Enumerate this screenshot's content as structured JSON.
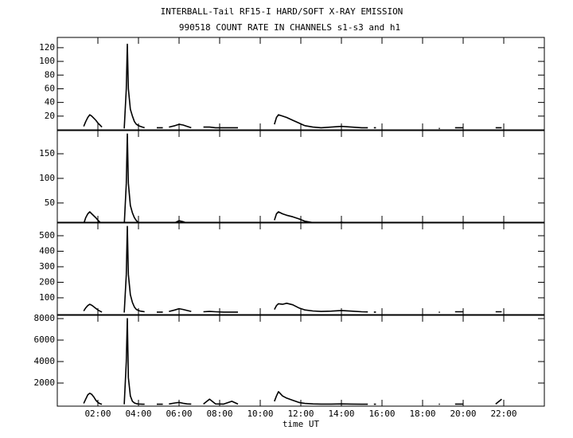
{
  "chart_data": [
    {
      "type": "line",
      "title": "INTERBALL-Tail RF15-I HARD/SOFT X-RAY EMISSION",
      "subtitle": "990518  COUNT RATE IN CHANNELS s1-s3 and h1",
      "x": [
        1.3,
        1.4,
        1.5,
        1.6,
        1.7,
        1.8,
        1.9,
        2.0,
        2.1,
        2.2,
        2.7,
        3.3,
        3.4,
        3.45,
        3.5,
        3.6,
        3.7,
        3.8,
        3.9,
        4.0,
        4.1,
        4.2,
        4.3,
        4.6,
        4.9,
        5.2,
        5.35,
        5.5,
        5.8,
        6.0,
        6.2,
        6.4,
        6.6,
        6.9,
        7.2,
        7.5,
        7.8,
        8.2,
        8.6,
        8.9,
        9.8,
        10.7,
        10.8,
        10.9,
        11.1,
        11.3,
        11.6,
        11.9,
        12.2,
        12.6,
        13.0,
        13.5,
        14.0,
        14.5,
        15.0,
        15.3,
        15.45,
        15.6,
        15.7,
        17,
        18.8,
        18.85,
        19.2,
        19.6,
        20.0,
        21,
        21.6,
        21.9
      ],
      "values": [
        5,
        12,
        18,
        22,
        20,
        17,
        14,
        10,
        7,
        4,
        null,
        2,
        60,
        125,
        60,
        30,
        20,
        12,
        8,
        6,
        5,
        4,
        3,
        null,
        3,
        3,
        null,
        4,
        6,
        8,
        7,
        5,
        3,
        null,
        4,
        4,
        3,
        3,
        3,
        3,
        null,
        8,
        18,
        22,
        20,
        18,
        14,
        10,
        6,
        4,
        3,
        4,
        5,
        4,
        3,
        3,
        null,
        3,
        3,
        null,
        2,
        2,
        null,
        3,
        3,
        null,
        3,
        3
      ],
      "color": "#000000",
      "xlim": [
        0,
        24
      ],
      "xticks": [
        2,
        4,
        6,
        8,
        10,
        12,
        14,
        16,
        18,
        20,
        22
      ],
      "ylim": [
        0,
        135
      ],
      "yticks": [
        20,
        40,
        60,
        80,
        100,
        120
      ]
    },
    {
      "type": "line",
      "x": [
        1.3,
        1.4,
        1.5,
        1.6,
        1.7,
        1.8,
        1.9,
        2.0,
        2.1,
        2.2,
        2.7,
        3.3,
        3.4,
        3.45,
        3.5,
        3.6,
        3.7,
        3.8,
        3.9,
        4.0,
        4.1,
        4.2,
        4.3,
        4.6,
        4.9,
        5.2,
        5.35,
        5.5,
        5.8,
        6.0,
        6.2,
        6.4,
        6.6,
        6.9,
        7.2,
        7.5,
        7.8,
        8.2,
        8.6,
        8.9,
        9.8,
        10.7,
        10.8,
        10.9,
        11.1,
        11.3,
        11.6,
        11.9,
        12.2,
        12.6,
        13.0,
        13.5,
        14.0,
        14.5,
        15.0,
        15.3,
        15.45,
        15.6,
        15.7,
        17,
        18.8,
        18.85,
        19.2,
        19.6,
        20.0,
        21,
        21.6,
        21.9
      ],
      "values": [
        8,
        20,
        28,
        32,
        28,
        24,
        20,
        15,
        11,
        8,
        null,
        5,
        90,
        190,
        90,
        45,
        30,
        20,
        14,
        10,
        8,
        7,
        6,
        null,
        6,
        6,
        null,
        7,
        10,
        14,
        12,
        9,
        7,
        null,
        8,
        8,
        7,
        7,
        7,
        6,
        null,
        15,
        28,
        32,
        28,
        25,
        22,
        18,
        13,
        10,
        8,
        9,
        11,
        9,
        7,
        7,
        null,
        6,
        6,
        null,
        5,
        5,
        null,
        7,
        7,
        null,
        7,
        7
      ],
      "color": "#000000",
      "xlim": [
        0,
        24
      ],
      "xticks": [
        2,
        4,
        6,
        8,
        10,
        12,
        14,
        16,
        18,
        20,
        22
      ],
      "ylim": [
        11,
        197
      ],
      "yticks": [
        50,
        100,
        150
      ]
    },
    {
      "type": "line",
      "x": [
        1.3,
        1.4,
        1.5,
        1.6,
        1.7,
        1.8,
        1.9,
        2.0,
        2.1,
        2.2,
        2.7,
        3.3,
        3.4,
        3.45,
        3.5,
        3.6,
        3.7,
        3.8,
        3.9,
        4.0,
        4.1,
        4.2,
        4.3,
        4.6,
        4.9,
        5.2,
        5.35,
        5.5,
        5.8,
        6.0,
        6.2,
        6.4,
        6.6,
        6.9,
        7.2,
        7.5,
        7.8,
        8.2,
        8.6,
        8.9,
        9.8,
        10.7,
        10.8,
        10.9,
        11.1,
        11.3,
        11.6,
        11.9,
        12.2,
        12.6,
        13.0,
        13.5,
        14.0,
        14.5,
        15.0,
        15.3,
        15.45,
        15.6,
        15.7,
        17,
        18.8,
        18.85,
        19.2,
        19.6,
        20.0,
        21,
        21.6,
        21.9
      ],
      "values": [
        15,
        35,
        50,
        58,
        52,
        42,
        32,
        22,
        14,
        8,
        null,
        5,
        250,
        560,
        250,
        120,
        70,
        40,
        25,
        18,
        14,
        12,
        10,
        null,
        8,
        8,
        null,
        12,
        22,
        30,
        25,
        18,
        12,
        null,
        10,
        12,
        10,
        8,
        8,
        8,
        null,
        25,
        50,
        62,
        58,
        65,
        55,
        35,
        22,
        15,
        12,
        14,
        18,
        14,
        10,
        9,
        null,
        8,
        8,
        null,
        7,
        7,
        null,
        10,
        10,
        null,
        10,
        10
      ],
      "color": "#000000",
      "xlim": [
        0,
        24
      ],
      "xticks": [
        2,
        4,
        6,
        8,
        10,
        12,
        14,
        16,
        18,
        20,
        22
      ],
      "ylim": [
        -8,
        582
      ],
      "yticks": [
        100,
        200,
        300,
        400,
        500
      ]
    },
    {
      "type": "line",
      "xlabel": "time UT",
      "x": [
        1.3,
        1.4,
        1.5,
        1.6,
        1.7,
        1.8,
        1.9,
        2.0,
        2.1,
        2.2,
        2.7,
        3.3,
        3.4,
        3.45,
        3.5,
        3.6,
        3.7,
        3.8,
        3.9,
        4.0,
        4.1,
        4.2,
        4.3,
        4.6,
        4.9,
        5.2,
        5.35,
        5.5,
        5.8,
        6.0,
        6.2,
        6.4,
        6.6,
        6.9,
        7.2,
        7.5,
        7.8,
        8.2,
        8.6,
        8.9,
        9.8,
        10.7,
        10.8,
        10.9,
        11.1,
        11.3,
        11.6,
        11.9,
        12.2,
        12.6,
        13.0,
        13.5,
        14.0,
        14.5,
        15.0,
        15.3,
        15.45,
        15.6,
        15.7,
        17,
        18.8,
        18.85,
        19.2,
        19.6,
        20.0,
        21,
        21.6,
        21.9
      ],
      "values": [
        100,
        500,
        900,
        1050,
        950,
        700,
        400,
        200,
        80,
        30,
        null,
        20,
        4000,
        8000,
        2500,
        800,
        300,
        150,
        80,
        50,
        40,
        30,
        30,
        null,
        30,
        30,
        null,
        50,
        150,
        200,
        120,
        60,
        40,
        null,
        40,
        500,
        60,
        40,
        300,
        40,
        null,
        300,
        800,
        1200,
        800,
        600,
        400,
        200,
        100,
        60,
        40,
        40,
        60,
        40,
        30,
        30,
        null,
        30,
        30,
        null,
        30,
        30,
        null,
        40,
        40,
        null,
        40,
        500
      ],
      "color": "#000000",
      "xlim": [
        0,
        24
      ],
      "xticks": [
        {
          "value": 2,
          "label": "02:00"
        },
        {
          "value": 4,
          "label": "04:00"
        },
        {
          "value": 6,
          "label": "06:00"
        },
        {
          "value": 8,
          "label": "08:00"
        },
        {
          "value": 10,
          "label": "10:00"
        },
        {
          "value": 12,
          "label": "12:00"
        },
        {
          "value": 14,
          "label": "14:00"
        },
        {
          "value": 16,
          "label": "16:00"
        },
        {
          "value": 18,
          "label": "18:00"
        },
        {
          "value": 20,
          "label": "20:00"
        },
        {
          "value": 22,
          "label": "22:00"
        }
      ],
      "ylim": [
        -150,
        8300
      ],
      "yticks": [
        2000,
        4000,
        6000,
        8000
      ]
    }
  ]
}
